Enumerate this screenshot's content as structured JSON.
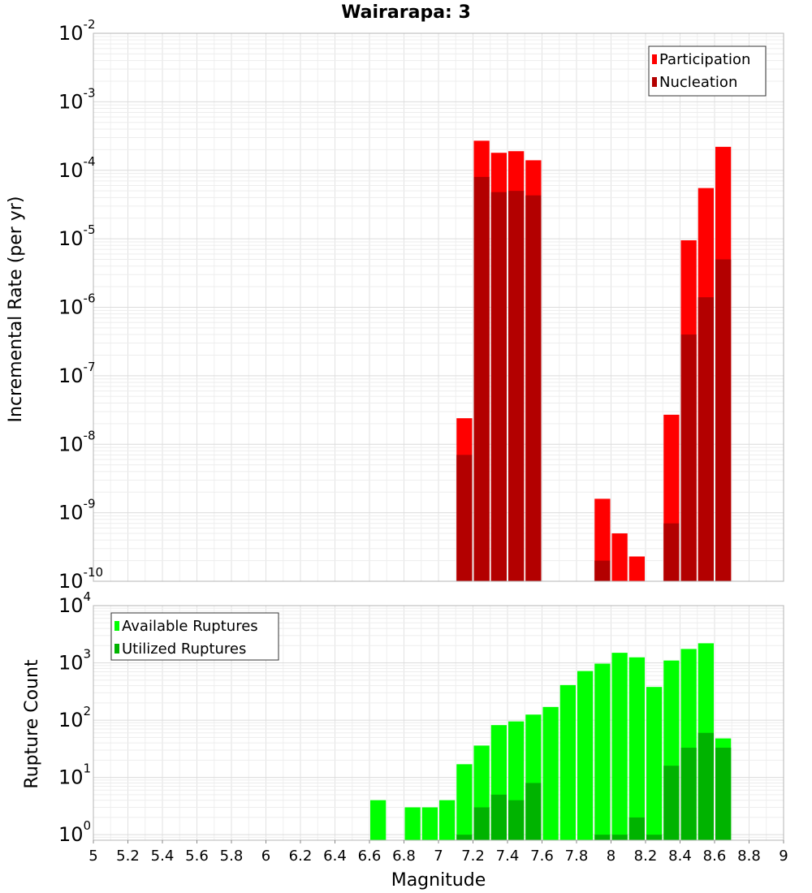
{
  "chart_data": [
    {
      "type": "bar",
      "title": "Wairarapa: 3",
      "xlabel": "Magnitude",
      "ylabel": "Incremental Rate (per yr)",
      "xlim": [
        5,
        9
      ],
      "ylim": [
        1e-10,
        0.01
      ],
      "yscale": "log",
      "y_tick_exponents": [
        "-10",
        "-9",
        "-8",
        "-7",
        "-6",
        "-5",
        "-4",
        "-3",
        "-2"
      ],
      "grid": true,
      "legend_position": "top-right",
      "bar_width": 0.1,
      "series": [
        {
          "name": "Participation",
          "color": "#ff0000",
          "points": [
            {
              "x": 7.15,
              "y": 2.4e-08
            },
            {
              "x": 7.25,
              "y": 0.00027
            },
            {
              "x": 7.35,
              "y": 0.00018
            },
            {
              "x": 7.45,
              "y": 0.00019
            },
            {
              "x": 7.55,
              "y": 0.00014
            },
            {
              "x": 7.95,
              "y": 1.6e-09
            },
            {
              "x": 8.05,
              "y": 5e-10
            },
            {
              "x": 8.15,
              "y": 2.3e-10
            },
            {
              "x": 8.35,
              "y": 2.7e-08
            },
            {
              "x": 8.45,
              "y": 9.5e-06
            },
            {
              "x": 8.55,
              "y": 5.5e-05
            },
            {
              "x": 8.65,
              "y": 0.00022
            }
          ]
        },
        {
          "name": "Nucleation",
          "color": "#b30000",
          "points": [
            {
              "x": 7.15,
              "y": 7e-09
            },
            {
              "x": 7.25,
              "y": 8e-05
            },
            {
              "x": 7.35,
              "y": 4.8e-05
            },
            {
              "x": 7.45,
              "y": 5e-05
            },
            {
              "x": 7.55,
              "y": 4.3e-05
            },
            {
              "x": 7.95,
              "y": 2e-10
            },
            {
              "x": 8.35,
              "y": 7e-10
            },
            {
              "x": 8.45,
              "y": 4e-07
            },
            {
              "x": 8.55,
              "y": 1.4e-06
            },
            {
              "x": 8.65,
              "y": 5e-06
            }
          ]
        }
      ]
    },
    {
      "type": "bar",
      "title": "",
      "xlabel": "Magnitude",
      "ylabel": "Rupture Count",
      "xlim": [
        5,
        9
      ],
      "ylim": [
        0.8,
        10000
      ],
      "yscale": "log",
      "y_tick_exponents": [
        "0",
        "1",
        "2",
        "3",
        "4"
      ],
      "x_ticks": [
        "5",
        "5.2",
        "5.4",
        "5.6",
        "5.8",
        "6",
        "6.2",
        "6.4",
        "6.6",
        "6.8",
        "7",
        "7.2",
        "7.4",
        "7.6",
        "7.8",
        "8",
        "8.2",
        "8.4",
        "8.6",
        "8.8",
        "9"
      ],
      "grid": true,
      "legend_position": "top-left",
      "bar_width": 0.1,
      "series": [
        {
          "name": "Available Ruptures",
          "color": "#00ff00",
          "points": [
            {
              "x": 6.65,
              "y": 4
            },
            {
              "x": 6.85,
              "y": 3
            },
            {
              "x": 6.95,
              "y": 3
            },
            {
              "x": 7.05,
              "y": 4
            },
            {
              "x": 7.15,
              "y": 17
            },
            {
              "x": 7.25,
              "y": 36
            },
            {
              "x": 7.35,
              "y": 82
            },
            {
              "x": 7.45,
              "y": 95
            },
            {
              "x": 7.55,
              "y": 125
            },
            {
              "x": 7.65,
              "y": 170
            },
            {
              "x": 7.75,
              "y": 410
            },
            {
              "x": 7.85,
              "y": 720
            },
            {
              "x": 7.95,
              "y": 970
            },
            {
              "x": 8.05,
              "y": 1500
            },
            {
              "x": 8.15,
              "y": 1250
            },
            {
              "x": 8.25,
              "y": 380
            },
            {
              "x": 8.35,
              "y": 1100
            },
            {
              "x": 8.45,
              "y": 1750
            },
            {
              "x": 8.55,
              "y": 2200
            },
            {
              "x": 8.65,
              "y": 48
            }
          ]
        },
        {
          "name": "Utilized Ruptures",
          "color": "#00b300",
          "points": [
            {
              "x": 7.15,
              "y": 1
            },
            {
              "x": 7.25,
              "y": 3
            },
            {
              "x": 7.35,
              "y": 5
            },
            {
              "x": 7.45,
              "y": 4
            },
            {
              "x": 7.55,
              "y": 8
            },
            {
              "x": 7.95,
              "y": 1
            },
            {
              "x": 8.05,
              "y": 1
            },
            {
              "x": 8.15,
              "y": 2
            },
            {
              "x": 8.25,
              "y": 1
            },
            {
              "x": 8.35,
              "y": 16
            },
            {
              "x": 8.45,
              "y": 33
            },
            {
              "x": 8.55,
              "y": 60
            },
            {
              "x": 8.65,
              "y": 33
            }
          ]
        }
      ]
    }
  ]
}
